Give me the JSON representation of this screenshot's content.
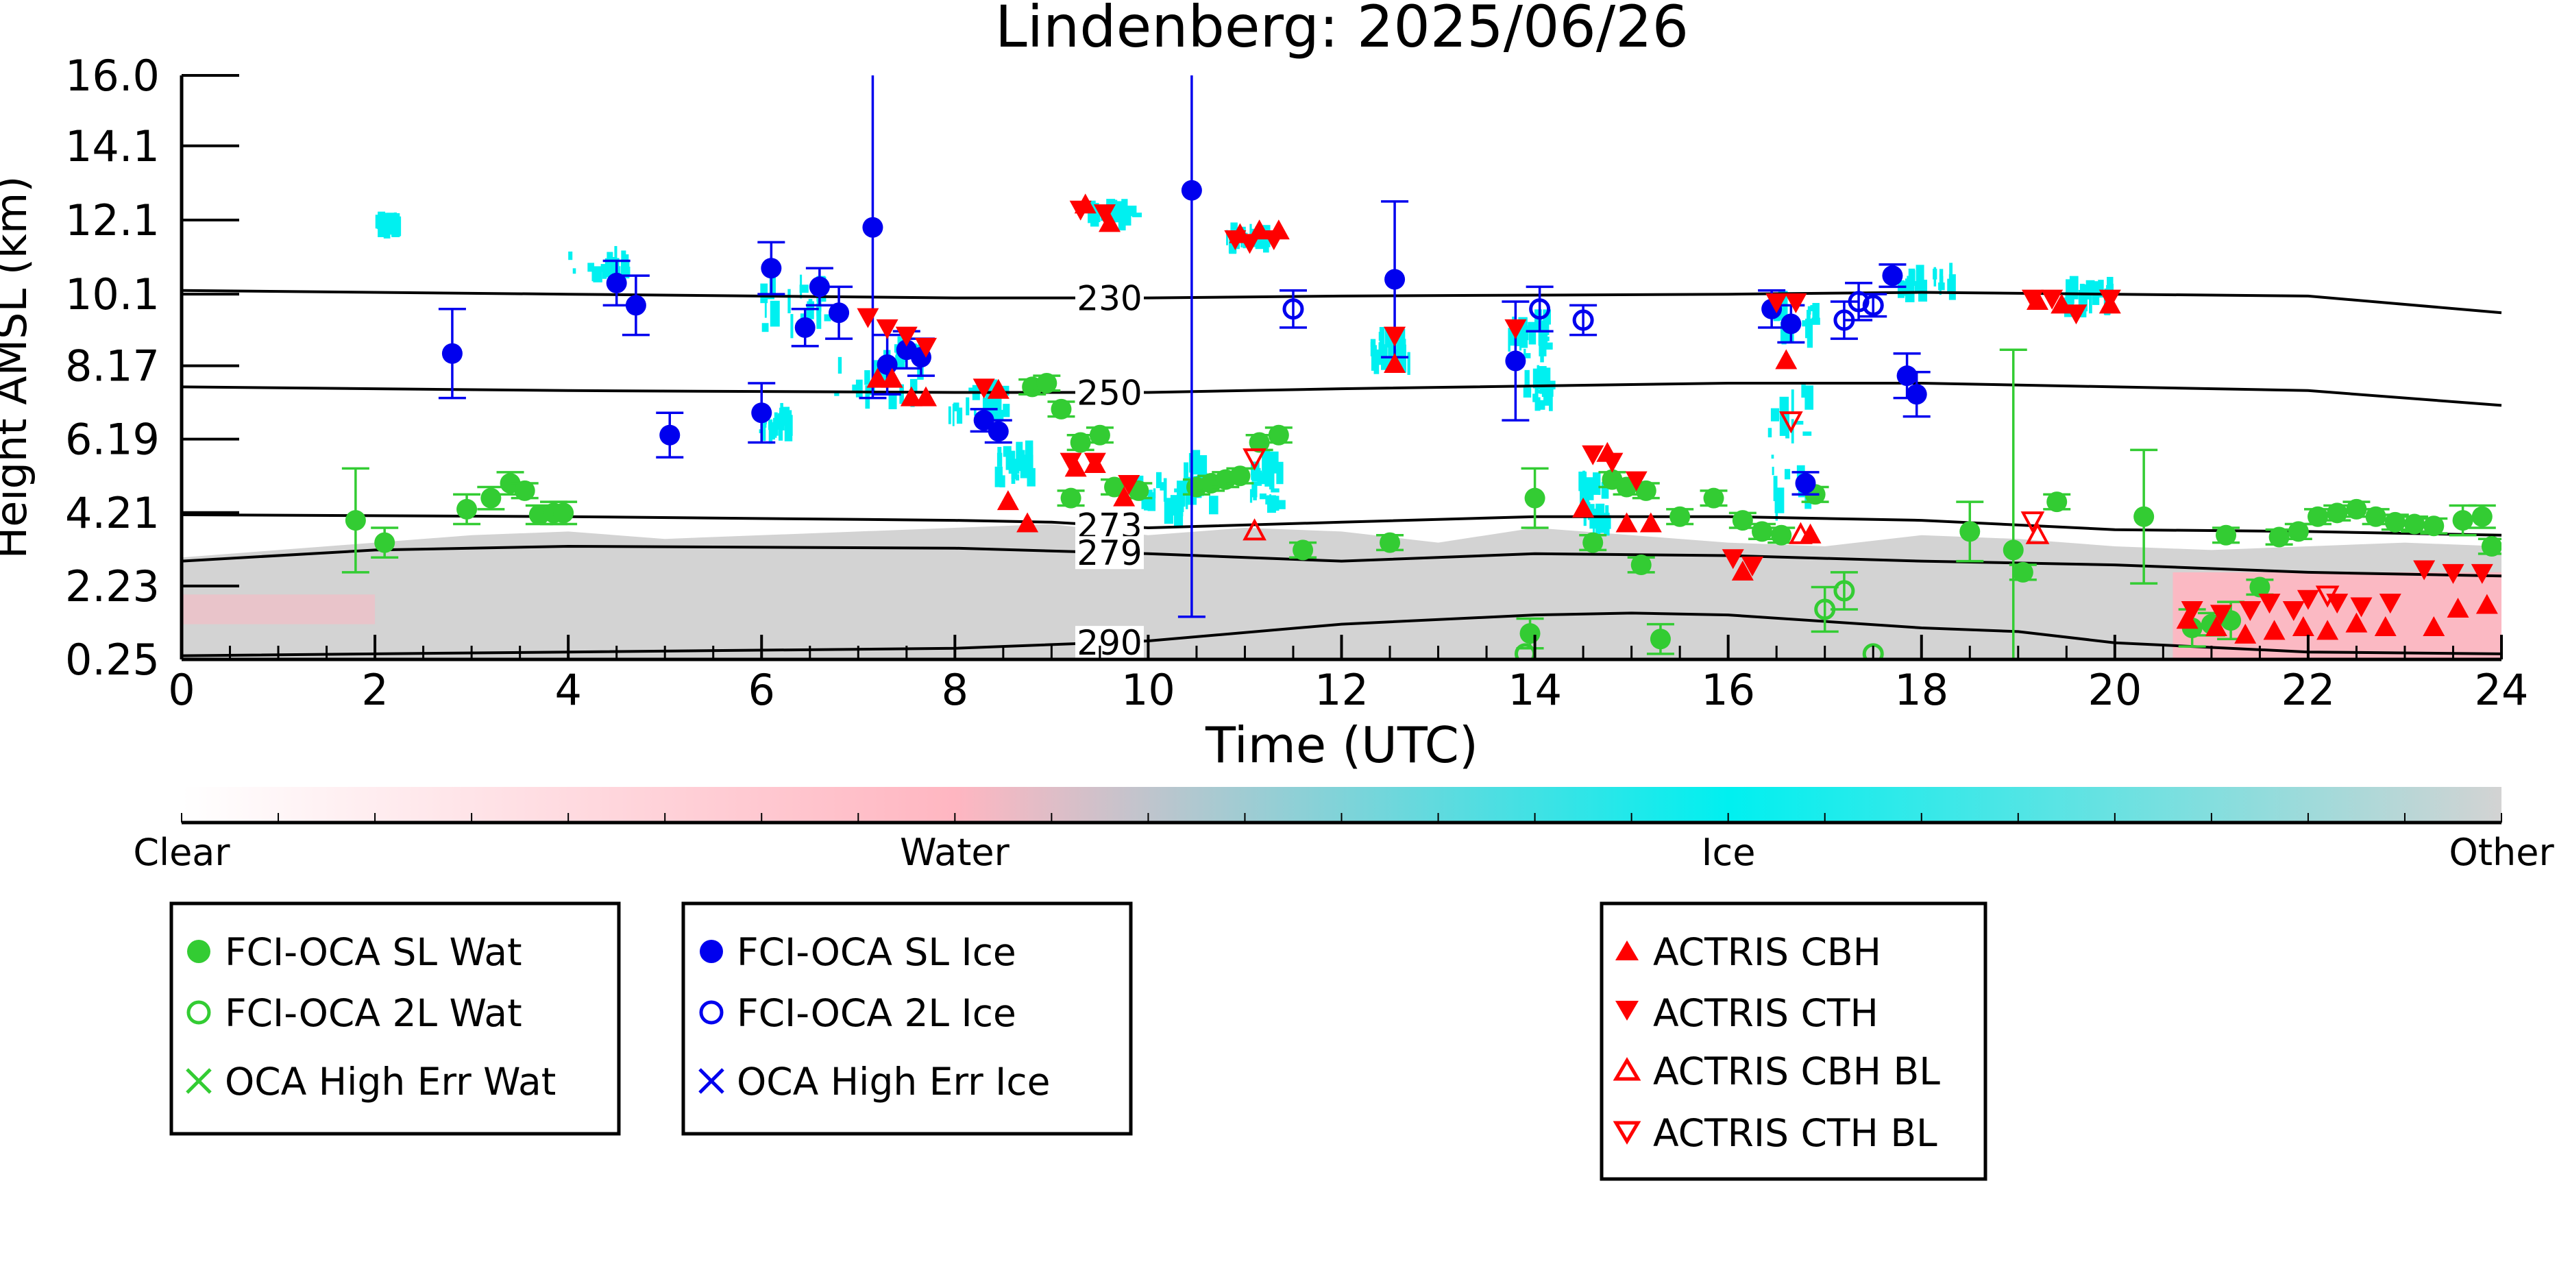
{
  "chart_data": {
    "type": "scatter",
    "title": "Lindenberg: 2025/06/26",
    "xlabel": "Time (UTC)",
    "ylabel": "Height AMSL (km)",
    "xlim": [
      0,
      24
    ],
    "ylim": [
      0.25,
      16.0
    ],
    "xticks": [
      0,
      2,
      4,
      6,
      8,
      10,
      12,
      14,
      16,
      18,
      20,
      22,
      24
    ],
    "yticks": [
      0.25,
      2.23,
      4.21,
      6.19,
      8.17,
      10.1,
      12.1,
      14.1,
      16.0
    ],
    "ytick_labels": [
      "0.25",
      "2.23",
      "4.21",
      "6.19",
      "8.17",
      "10.1",
      "12.1",
      "14.1",
      "16.0"
    ],
    "colorbar": {
      "labels": [
        "Clear",
        "Water",
        "Ice",
        "Other"
      ],
      "colors": [
        "#ffffff",
        "#ffb6c1",
        "#00f0f0",
        "#d3d3d3"
      ]
    },
    "colors": {
      "water": "#33cc33",
      "ice": "#0000ee",
      "actris": "#ff0000",
      "ice_cloud": "#00f0f0",
      "water_cloud": "#ffb6c1",
      "other_cloud": "#d3d3d3"
    },
    "isotherms": [
      {
        "label": "230",
        "points": [
          [
            0,
            10.2
          ],
          [
            4,
            10.1
          ],
          [
            8,
            10.0
          ],
          [
            10,
            10.0
          ],
          [
            12,
            10.05
          ],
          [
            16,
            10.1
          ],
          [
            18,
            10.15
          ],
          [
            22,
            10.05
          ],
          [
            24,
            9.6
          ]
        ]
      },
      {
        "label": "250",
        "points": [
          [
            0,
            7.6
          ],
          [
            4,
            7.5
          ],
          [
            8,
            7.45
          ],
          [
            10,
            7.45
          ],
          [
            12,
            7.55
          ],
          [
            16,
            7.7
          ],
          [
            18,
            7.7
          ],
          [
            22,
            7.5
          ],
          [
            24,
            7.1
          ]
        ]
      },
      {
        "label": "273",
        "points": [
          [
            0,
            4.15
          ],
          [
            4,
            4.1
          ],
          [
            8,
            4.0
          ],
          [
            9,
            3.95
          ],
          [
            10,
            3.8
          ],
          [
            12,
            3.95
          ],
          [
            14,
            4.1
          ],
          [
            16,
            4.1
          ],
          [
            18,
            4.0
          ],
          [
            20,
            3.75
          ],
          [
            22,
            3.7
          ],
          [
            24,
            3.6
          ]
        ]
      },
      {
        "label": "279",
        "points": [
          [
            0,
            2.9
          ],
          [
            2,
            3.2
          ],
          [
            4,
            3.3
          ],
          [
            8,
            3.25
          ],
          [
            10,
            3.1
          ],
          [
            12,
            2.9
          ],
          [
            14,
            3.1
          ],
          [
            16,
            3.05
          ],
          [
            18,
            2.9
          ],
          [
            20,
            2.8
          ],
          [
            22,
            2.6
          ],
          [
            24,
            2.5
          ]
        ]
      },
      {
        "label": "290",
        "points": [
          [
            0,
            0.35
          ],
          [
            4,
            0.45
          ],
          [
            8,
            0.55
          ],
          [
            10,
            0.75
          ],
          [
            12,
            1.2
          ],
          [
            14,
            1.45
          ],
          [
            15,
            1.5
          ],
          [
            16,
            1.45
          ],
          [
            18,
            1.1
          ],
          [
            19,
            1.0
          ],
          [
            20,
            0.7
          ],
          [
            22,
            0.45
          ],
          [
            24,
            0.4
          ]
        ]
      }
    ],
    "series": [
      {
        "name": "FCI-OCA SL Wat",
        "marker": "filled-circle",
        "color": "#33cc33",
        "points": [
          [
            1.8,
            4.0,
            1.4
          ],
          [
            2.1,
            3.4,
            0.4
          ],
          [
            2.95,
            4.3,
            0.4
          ],
          [
            3.2,
            4.6,
            0.3
          ],
          [
            3.4,
            5.0,
            0.3
          ],
          [
            3.55,
            4.8,
            0.2
          ],
          [
            3.7,
            4.15,
            0.25
          ],
          [
            3.85,
            4.2,
            0.3
          ],
          [
            3.95,
            4.2,
            0.3
          ],
          [
            8.8,
            7.6,
            0.2
          ],
          [
            8.95,
            7.7,
            0.2
          ],
          [
            9.1,
            7.0,
            0.2
          ],
          [
            9.3,
            6.1,
            0.2
          ],
          [
            9.5,
            6.3,
            0.2
          ],
          [
            9.2,
            4.6,
            0.2
          ],
          [
            9.65,
            4.9,
            0.2
          ],
          [
            9.9,
            4.8,
            0.2
          ],
          [
            10.5,
            4.9,
            0.2
          ],
          [
            10.65,
            5.0,
            0.2
          ],
          [
            10.8,
            5.1,
            0.2
          ],
          [
            10.95,
            5.2,
            0.2
          ],
          [
            11.15,
            6.1,
            0.2
          ],
          [
            11.35,
            6.3,
            0.2
          ],
          [
            11.6,
            3.2,
            0.2
          ],
          [
            12.5,
            3.4,
            0.2
          ],
          [
            14.0,
            4.6,
            0.8
          ],
          [
            14.6,
            3.4,
            0.2
          ],
          [
            14.8,
            5.1,
            0.2
          ],
          [
            14.95,
            4.9,
            0.2
          ],
          [
            15.15,
            4.8,
            0.2
          ],
          [
            15.1,
            2.8,
            0.2
          ],
          [
            15.3,
            0.8,
            0.4
          ],
          [
            15.5,
            4.1,
            0.2
          ],
          [
            15.85,
            4.6,
            0.2
          ],
          [
            16.15,
            4.0,
            0.2
          ],
          [
            16.35,
            3.7,
            0.2
          ],
          [
            16.55,
            3.6,
            0.2
          ],
          [
            16.9,
            4.7,
            0.2
          ],
          [
            13.95,
            0.95,
            0.4
          ],
          [
            18.5,
            3.7,
            0.8
          ],
          [
            18.95,
            3.2,
            5.4
          ],
          [
            19.05,
            2.6,
            0.2
          ],
          [
            19.4,
            4.5,
            0.2
          ],
          [
            20.3,
            4.1,
            1.8
          ],
          [
            21.15,
            3.6,
            0.2
          ],
          [
            21.5,
            2.2,
            0.2
          ],
          [
            21.7,
            3.55,
            0.2
          ],
          [
            21.9,
            3.7,
            0.2
          ],
          [
            22.1,
            4.1,
            0.2
          ],
          [
            22.3,
            4.2,
            0.2
          ],
          [
            22.5,
            4.3,
            0.2
          ],
          [
            22.7,
            4.1,
            0.2
          ],
          [
            22.9,
            3.95,
            0.2
          ],
          [
            23.1,
            3.9,
            0.2
          ],
          [
            23.3,
            3.85,
            0.2
          ],
          [
            23.6,
            4.0,
            0.4
          ],
          [
            23.8,
            4.1,
            0.3
          ],
          [
            23.9,
            3.3,
            0.2
          ],
          [
            20.8,
            1.1,
            0.5
          ],
          [
            21.0,
            1.2,
            0.3
          ],
          [
            21.2,
            1.3,
            0.5
          ]
        ]
      },
      {
        "name": "FCI-OCA 2L Wat",
        "marker": "open-circle",
        "color": "#33cc33",
        "points": [
          [
            13.9,
            0.4,
            0
          ],
          [
            17.0,
            1.6,
            0.6
          ],
          [
            17.2,
            2.1,
            0.5
          ],
          [
            17.5,
            0.4,
            0
          ]
        ]
      },
      {
        "name": "OCA High Err Wat",
        "marker": "x",
        "color": "#33cc33",
        "points": []
      },
      {
        "name": "FCI-OCA SL Ice",
        "marker": "filled-circle",
        "color": "#0000ee",
        "points": [
          [
            2.8,
            8.5,
            1.2
          ],
          [
            4.5,
            10.4,
            0.6
          ],
          [
            4.7,
            9.8,
            0.8
          ],
          [
            5.05,
            6.3,
            0.6
          ],
          [
            6.0,
            6.9,
            0.8
          ],
          [
            6.1,
            10.8,
            0.7
          ],
          [
            6.45,
            9.2,
            0.5
          ],
          [
            6.6,
            10.3,
            0.5
          ],
          [
            6.8,
            9.6,
            0.7
          ],
          [
            7.15,
            11.9,
            4.6
          ],
          [
            7.3,
            8.2,
            0.8
          ],
          [
            7.5,
            8.6,
            0.5
          ],
          [
            7.65,
            8.4,
            0.5
          ],
          [
            8.3,
            6.7,
            0.3
          ],
          [
            8.45,
            6.4,
            0.3
          ],
          [
            10.45,
            12.9,
            11.5
          ],
          [
            12.55,
            10.5,
            2.1
          ],
          [
            13.8,
            8.3,
            1.6
          ],
          [
            16.45,
            9.7,
            0.5
          ],
          [
            16.65,
            9.3,
            0.5
          ],
          [
            16.8,
            5.0,
            0.3
          ],
          [
            17.7,
            10.6,
            0.3
          ],
          [
            17.85,
            7.9,
            0.6
          ],
          [
            17.95,
            7.4,
            0.6
          ]
        ]
      },
      {
        "name": "FCI-OCA 2L Ice",
        "marker": "open-circle",
        "color": "#0000ee",
        "points": [
          [
            11.5,
            9.7,
            0.5
          ],
          [
            14.05,
            9.7,
            0.6
          ],
          [
            14.5,
            9.4,
            0.4
          ],
          [
            17.2,
            9.4,
            0.5
          ],
          [
            17.35,
            9.9,
            0.5
          ],
          [
            17.5,
            9.8,
            0.3
          ]
        ]
      },
      {
        "name": "OCA High Err Ice",
        "marker": "x",
        "color": "#0000ee",
        "points": []
      },
      {
        "name": "ACTRIS CBH",
        "marker": "filled-triangle-up",
        "color": "#ff0000",
        "points": [
          [
            7.2,
            7.8
          ],
          [
            7.35,
            7.8
          ],
          [
            7.55,
            7.3
          ],
          [
            7.7,
            7.3
          ],
          [
            8.45,
            7.5
          ],
          [
            8.55,
            4.5
          ],
          [
            8.75,
            3.9
          ],
          [
            9.25,
            5.4
          ],
          [
            9.45,
            5.5
          ],
          [
            9.35,
            12.5
          ],
          [
            9.6,
            12.0
          ],
          [
            9.75,
            4.6
          ],
          [
            10.95,
            11.7
          ],
          [
            11.15,
            11.8
          ],
          [
            11.35,
            11.8
          ],
          [
            12.55,
            8.2
          ],
          [
            14.5,
            4.3
          ],
          [
            14.75,
            5.8
          ],
          [
            14.95,
            3.9
          ],
          [
            15.2,
            3.9
          ],
          [
            16.15,
            2.6
          ],
          [
            16.6,
            8.3
          ],
          [
            16.85,
            3.6
          ],
          [
            19.2,
            9.9
          ],
          [
            19.45,
            9.8
          ],
          [
            19.95,
            9.8
          ],
          [
            20.75,
            1.3
          ],
          [
            21.05,
            1.1
          ],
          [
            21.35,
            0.9
          ],
          [
            21.65,
            1.0
          ],
          [
            21.95,
            1.1
          ],
          [
            22.2,
            1.0
          ],
          [
            22.5,
            1.2
          ],
          [
            22.8,
            1.1
          ],
          [
            23.3,
            1.1
          ],
          [
            23.55,
            1.6
          ],
          [
            23.85,
            1.7
          ]
        ]
      },
      {
        "name": "ACTRIS CTH",
        "marker": "filled-triangle-down",
        "color": "#ff0000",
        "points": [
          [
            7.1,
            9.5
          ],
          [
            7.3,
            9.2
          ],
          [
            7.5,
            9.0
          ],
          [
            7.7,
            8.7
          ],
          [
            8.3,
            7.6
          ],
          [
            9.2,
            5.6
          ],
          [
            9.45,
            5.6
          ],
          [
            9.3,
            12.4
          ],
          [
            9.55,
            12.3
          ],
          [
            9.8,
            5.0
          ],
          [
            10.9,
            11.6
          ],
          [
            11.05,
            11.5
          ],
          [
            11.3,
            11.6
          ],
          [
            12.55,
            9.0
          ],
          [
            13.8,
            9.2
          ],
          [
            14.6,
            5.8
          ],
          [
            14.8,
            5.6
          ],
          [
            15.05,
            5.1
          ],
          [
            16.05,
            3.0
          ],
          [
            16.25,
            2.8
          ],
          [
            16.5,
            9.9
          ],
          [
            16.7,
            9.9
          ],
          [
            19.15,
            10.0
          ],
          [
            19.35,
            10.0
          ],
          [
            19.6,
            9.6
          ],
          [
            19.95,
            10.0
          ],
          [
            20.8,
            1.6
          ],
          [
            21.1,
            1.5
          ],
          [
            21.4,
            1.6
          ],
          [
            21.6,
            1.8
          ],
          [
            21.85,
            1.6
          ],
          [
            22.0,
            1.9
          ],
          [
            22.3,
            1.8
          ],
          [
            22.55,
            1.7
          ],
          [
            22.85,
            1.8
          ],
          [
            23.2,
            2.7
          ],
          [
            23.5,
            2.6
          ],
          [
            23.8,
            2.6
          ]
        ]
      },
      {
        "name": "ACTRIS CBH BL",
        "marker": "open-triangle-up",
        "color": "#ff0000",
        "points": [
          [
            11.1,
            3.7
          ],
          [
            16.75,
            3.6
          ],
          [
            19.2,
            3.6
          ]
        ]
      },
      {
        "name": "ACTRIS CTH BL",
        "marker": "open-triangle-down",
        "color": "#ff0000",
        "points": [
          [
            11.1,
            5.7
          ],
          [
            16.65,
            6.7
          ],
          [
            19.15,
            4.0
          ],
          [
            22.2,
            2.0
          ]
        ]
      }
    ],
    "legend": {
      "boxes": [
        [
          "FCI-OCA SL Wat",
          "FCI-OCA 2L Wat",
          "OCA High Err Wat"
        ],
        [
          "FCI-OCA SL Ice",
          "FCI-OCA 2L Ice",
          "OCA High Err Ice"
        ],
        [
          "ACTRIS CBH",
          "ACTRIS CTH",
          "ACTRIS CBH BL",
          "ACTRIS CTH BL"
        ]
      ],
      "placement": "below-plot"
    }
  }
}
